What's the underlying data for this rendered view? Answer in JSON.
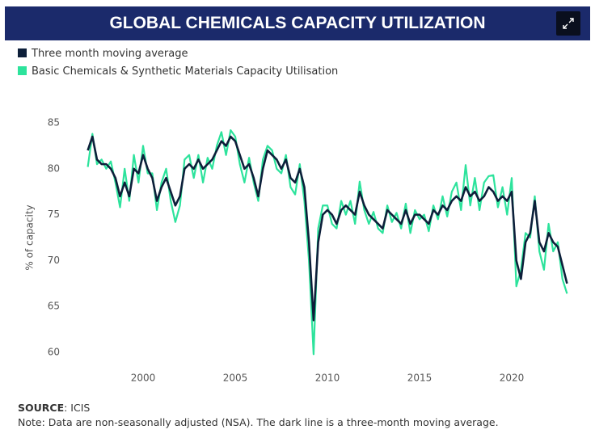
{
  "chart_data": {
    "type": "line",
    "title": "GLOBAL CHEMICALS CAPACITY UTILIZATION",
    "y_label": "% of capacity",
    "x": [
      1997,
      1997.25,
      1997.5,
      1997.75,
      1998,
      1998.25,
      1998.5,
      1998.75,
      1999,
      1999.25,
      1999.5,
      1999.75,
      2000,
      2000.25,
      2000.5,
      2000.75,
      2001,
      2001.25,
      2001.5,
      2001.75,
      2002,
      2002.25,
      2002.5,
      2002.75,
      2003,
      2003.25,
      2003.5,
      2003.75,
      2004,
      2004.25,
      2004.5,
      2004.75,
      2005,
      2005.25,
      2005.5,
      2005.75,
      2006,
      2006.25,
      2006.5,
      2006.75,
      2007,
      2007.25,
      2007.5,
      2007.75,
      2008,
      2008.25,
      2008.5,
      2008.75,
      2009,
      2009.25,
      2009.5,
      2009.75,
      2010,
      2010.25,
      2010.5,
      2010.75,
      2011,
      2011.25,
      2011.5,
      2011.75,
      2012,
      2012.25,
      2012.5,
      2012.75,
      2013,
      2013.25,
      2013.5,
      2013.75,
      2014,
      2014.25,
      2014.5,
      2014.75,
      2015,
      2015.25,
      2015.5,
      2015.75,
      2016,
      2016.25,
      2016.5,
      2016.75,
      2017,
      2017.25,
      2017.5,
      2017.75,
      2018,
      2018.25,
      2018.5,
      2018.75,
      2019,
      2019.25,
      2019.5,
      2019.75,
      2020,
      2020.25,
      2020.5,
      2020.75,
      2021,
      2021.25,
      2021.5,
      2021.75,
      2022,
      2022.25,
      2022.5,
      2022.75,
      2023
    ],
    "series": [
      {
        "name": "Three month moving average",
        "color": "#0d1f3a",
        "values": [
          82,
          83.5,
          81,
          80.5,
          80.5,
          80,
          79,
          77,
          78.5,
          77,
          80,
          79.5,
          81.5,
          80,
          79,
          76.5,
          78,
          79,
          77.5,
          76,
          77,
          80,
          80.5,
          80,
          81,
          80,
          80.5,
          81,
          82,
          83,
          82.5,
          83.5,
          83,
          81.5,
          80,
          80.5,
          79,
          77,
          80,
          82,
          81.5,
          81,
          80,
          81,
          79,
          78.5,
          80,
          78,
          72,
          63.5,
          72,
          75,
          75.5,
          75,
          74,
          75.5,
          76,
          75.5,
          75,
          77.5,
          76,
          75,
          74.5,
          74,
          73.5,
          75.5,
          75,
          74.5,
          74,
          75.5,
          74,
          75,
          75,
          74.5,
          74,
          75.5,
          75,
          76,
          75.5,
          76.5,
          77,
          76.5,
          78,
          77,
          77.5,
          76.5,
          77,
          78,
          77.5,
          76.5,
          77,
          76.5,
          77.5,
          70,
          68,
          72,
          73,
          76.5,
          72,
          71,
          73,
          72,
          71.5,
          69.5,
          67.5
        ]
      },
      {
        "name": "Basic Chemicals & Synthetic Materials Capacity Utilisation",
        "color": "#2de39c",
        "values": [
          80.2,
          83.8,
          80.5,
          81,
          80,
          80.8,
          78.5,
          75.8,
          80,
          76.5,
          81.5,
          78.5,
          82.5,
          79.5,
          79.5,
          75.5,
          78.5,
          80,
          76.5,
          74.2,
          76,
          81,
          81.5,
          79,
          81.5,
          78.5,
          81.2,
          80,
          82.5,
          84,
          81.5,
          84.2,
          83.5,
          80.5,
          78.5,
          81.2,
          78.5,
          76.5,
          81,
          82.5,
          82,
          80,
          79.5,
          81.5,
          78,
          77.2,
          80.5,
          76.5,
          70,
          59.8,
          73.5,
          76,
          76,
          74,
          73.5,
          76.5,
          75,
          76.5,
          74,
          78.6,
          75.5,
          74,
          75.3,
          73.5,
          73,
          76,
          74.2,
          75.2,
          73.5,
          76.2,
          73,
          75.5,
          74.5,
          75,
          73.2,
          76,
          74.5,
          77,
          74.8,
          77.5,
          78.5,
          75.5,
          80.4,
          76,
          79,
          75.5,
          78.5,
          79.2,
          79.3,
          75.8,
          78,
          75,
          79,
          67.2,
          69,
          73,
          72.5,
          77,
          71,
          69,
          74,
          71,
          72,
          68,
          66.4
        ]
      }
    ],
    "xlim": [
      1996,
      2024
    ],
    "xticks": [
      2000,
      2005,
      2010,
      2015,
      2020
    ],
    "ylim": [
      59,
      86
    ],
    "yticks": [
      60,
      65,
      70,
      75,
      80,
      85
    ],
    "grid": false
  },
  "footer": {
    "source_label": "SOURCE",
    "source_text": ": ICIS",
    "note": "Note: Data are non-seasonally adjusted (NSA). The dark line is a three-month moving average."
  }
}
